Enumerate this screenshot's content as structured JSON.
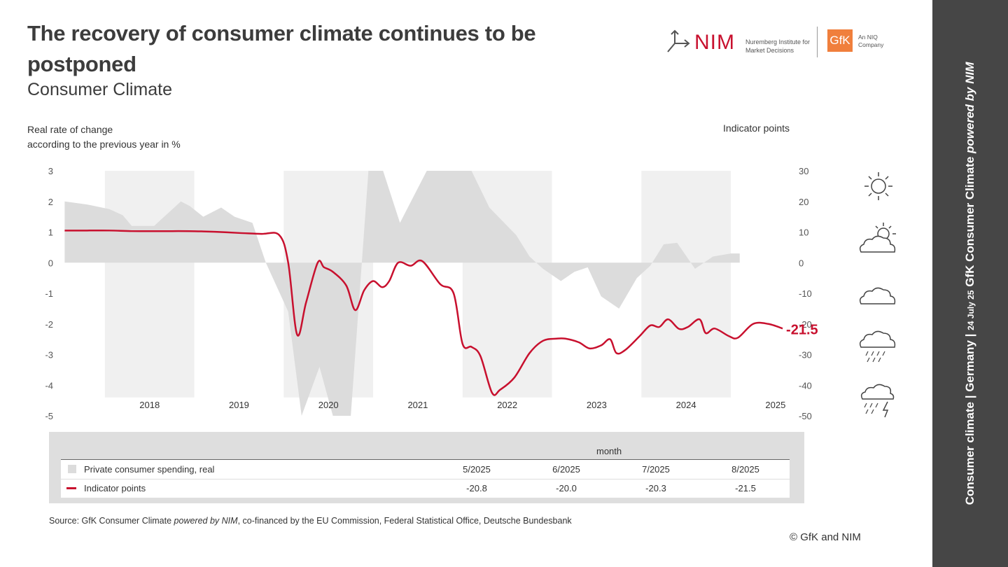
{
  "header": {
    "title": "The recovery of consumer climate continues to be postponed",
    "subtitle": "Consumer Climate"
  },
  "logos": {
    "nim": "NIM",
    "nim_sub": "Nuremberg Institute for Market Decisions",
    "gfk": "GfK",
    "gfk_sub": "An NIQ Company"
  },
  "axis_labels": {
    "left": "Real rate of change\naccording to the previous year in %",
    "right": "Indicator points"
  },
  "colors": {
    "indicator_line": "#c8102e",
    "spending_area": "#dcdcdc",
    "year_band": "#f0f0f0",
    "sidebar": "#464646"
  },
  "weather_icons": [
    "sun-icon",
    "sun-cloud-icon",
    "cloud-icon",
    "rain-cloud-icon",
    "thunderstorm-icon"
  ],
  "sidebar": {
    "part1": "Consumer climate | Germany | ",
    "date": "24 July  25",
    "part2": "  GfK Consumer Climate ",
    "part3": "powered by NIM"
  },
  "chart_data": {
    "type": "line",
    "x_ticks": [
      "2018",
      "2019",
      "2020",
      "2021",
      "2022",
      "2023",
      "2024",
      "2025"
    ],
    "y_left_ticks": [
      "3",
      "2",
      "1",
      "0",
      "-1",
      "-2",
      "-3",
      "-4",
      "-5"
    ],
    "y_right_ticks": [
      "30",
      "20",
      "10",
      "0",
      "-10",
      "-20",
      "-30",
      "-40",
      "-50"
    ],
    "ylim_left": [
      -5,
      3
    ],
    "ylim_right": [
      -50,
      30
    ],
    "end_label": "-21.5",
    "series": [
      {
        "name": "Private consumer spending, real",
        "axis": "left",
        "kind": "area",
        "x": [
          2017.55,
          2017.8,
          2018.05,
          2018.2,
          2018.3,
          2018.55,
          2018.7,
          2018.85,
          2018.95,
          2019.1,
          2019.3,
          2019.45,
          2019.65,
          2019.8,
          2020.05,
          2020.2,
          2020.4,
          2020.55,
          2020.75,
          2020.95,
          2021.1,
          2021.3,
          2021.6,
          2021.9,
          2022.1,
          2022.3,
          2022.6,
          2022.75,
          2022.9,
          2023.1,
          2023.25,
          2023.4,
          2023.55,
          2023.75,
          2023.95,
          2024.1,
          2024.25,
          2024.4,
          2024.6,
          2024.8,
          2025.0,
          2025.1
        ],
        "values": [
          2.0,
          1.9,
          1.75,
          1.55,
          1.2,
          1.2,
          1.6,
          2.0,
          1.85,
          1.5,
          1.8,
          1.5,
          1.3,
          0.0,
          -1.6,
          -5.0,
          -3.4,
          -5.0,
          -5.0,
          3.1,
          3.1,
          1.3,
          3.0,
          3.0,
          3.0,
          1.8,
          0.9,
          0.2,
          -0.2,
          -0.6,
          -0.3,
          -0.15,
          -1.1,
          -1.5,
          -0.5,
          -0.1,
          0.6,
          0.65,
          -0.2,
          0.2,
          0.3,
          0.3
        ]
      },
      {
        "name": "Indicator points",
        "axis": "right",
        "kind": "line",
        "x": [
          2017.55,
          2017.8,
          2018.05,
          2018.3,
          2018.55,
          2018.75,
          2018.95,
          2019.1,
          2019.3,
          2019.5,
          2019.75,
          2019.95,
          2020.05,
          2020.15,
          2020.25,
          2020.38,
          2020.45,
          2020.55,
          2020.7,
          2020.8,
          2020.9,
          2021.0,
          2021.1,
          2021.18,
          2021.28,
          2021.42,
          2021.55,
          2021.75,
          2021.9,
          2022.0,
          2022.1,
          2022.2,
          2022.33,
          2022.42,
          2022.58,
          2022.75,
          2022.9,
          2023.05,
          2023.15,
          2023.3,
          2023.42,
          2023.55,
          2023.65,
          2023.72,
          2023.82,
          2023.98,
          2024.1,
          2024.2,
          2024.3,
          2024.42,
          2024.52,
          2024.65,
          2024.72,
          2024.82,
          2024.98,
          2025.08,
          2025.25,
          2025.42,
          2025.58
        ],
        "values": [
          10.5,
          10.5,
          10.5,
          10.3,
          10.3,
          10.3,
          10.3,
          10.2,
          10.0,
          9.7,
          9.4,
          9.0,
          0.0,
          -23.5,
          -13.0,
          0.0,
          -1.5,
          -3.0,
          -7.5,
          -15.5,
          -9.0,
          -6.0,
          -8.0,
          -6.0,
          0.0,
          -1.0,
          0.5,
          -7.0,
          -10.0,
          -26.5,
          -27.5,
          -30.5,
          -42.5,
          -41.5,
          -37.5,
          -29.5,
          -25.5,
          -24.8,
          -24.8,
          -26.0,
          -28.0,
          -27.0,
          -25.0,
          -29.5,
          -28.5,
          -24.0,
          -20.5,
          -21.0,
          -18.5,
          -21.6,
          -21.0,
          -18.5,
          -23.0,
          -21.5,
          -24.0,
          -24.5,
          -20.0,
          -20.0,
          -21.5
        ]
      }
    ],
    "table": {
      "header": "month",
      "columns": [
        "5/2025",
        "6/2025",
        "7/2025",
        "8/2025"
      ],
      "rows": [
        {
          "label": "Private consumer spending, real",
          "values": [
            "",
            "",
            "",
            ""
          ]
        },
        {
          "label": "Indicator points",
          "values": [
            "-20.8",
            "-20.0",
            "-20.3",
            "-21.5"
          ]
        }
      ]
    }
  },
  "footer": {
    "source_prefix": "Source: GfK Consumer Climate ",
    "source_italic": "powered by NIM",
    "source_suffix": ", co-financed by the EU Commission, Federal Statistical Office, Deutsche Bundesbank",
    "copyright": "© GfK and NIM"
  }
}
